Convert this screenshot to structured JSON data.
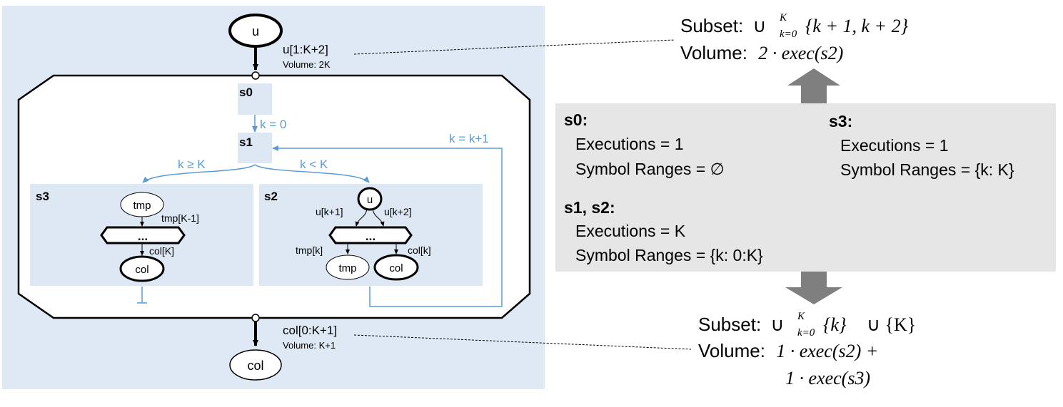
{
  "sdfg": {
    "input_node": "u",
    "output_node": "col",
    "input_memlet": {
      "subset": "u[1:K+2]",
      "volume": "Volume: 2K"
    },
    "output_memlet": {
      "subset": "col[0:K+1]",
      "volume": "Volume: K+1"
    },
    "states": {
      "s0": "s0",
      "s1": "s1",
      "s2": "s2",
      "s3": "s3"
    },
    "edges": {
      "init": "k = 0",
      "increment": "k = k+1",
      "exit": "k ≥ K",
      "loop": "k < K"
    },
    "s3_body": {
      "in_node": "tmp",
      "in_memlet": "tmp[K-1]",
      "map": "...",
      "out_memlet": "col[K]",
      "out_node": "col"
    },
    "s2_body": {
      "in_node": "u",
      "in_memlet_left": "u[k+1]",
      "in_memlet_right": "u[k+2]",
      "map": "...",
      "out_memlet_left": "tmp[k]",
      "out_memlet_right": "col[k]",
      "out_node_left": "tmp",
      "out_node_right": "col"
    }
  },
  "analysis": {
    "s0": {
      "title": "s0:",
      "executions": "Executions = 1",
      "ranges": "Symbol Ranges = ∅"
    },
    "s3": {
      "title": "s3:",
      "executions": "Executions = 1",
      "ranges": "Symbol Ranges = {k: K}"
    },
    "s1s2": {
      "title": "s1, s2:",
      "executions": "Executions = K",
      "ranges": "Symbol Ranges = {k: 0:K}"
    }
  },
  "top_result": {
    "subset_label": "Subset:",
    "subset_union": "∪",
    "subset_sup": "K",
    "subset_sub": "k=0",
    "subset_set": "{k + 1, k + 2}",
    "volume_label": "Volume:",
    "volume_expr": "2 · exec(s2)"
  },
  "bottom_result": {
    "subset_label": "Subset:",
    "subset_union": "∪",
    "subset_sup": "K",
    "subset_sub": "k=0",
    "subset_set": "{k}",
    "subset_tail": "∪ {K}",
    "volume_label": "Volume:",
    "volume_line1": "1 · exec(s2) +",
    "volume_line2": "1 · exec(s3)"
  },
  "colors": {
    "panel_bg": "#dee9f5",
    "state_bg": "#dde8f4",
    "interstate": "#5b9bd5",
    "analysis_bg": "#e6e6e6",
    "arrow": "#7f7f7f"
  }
}
